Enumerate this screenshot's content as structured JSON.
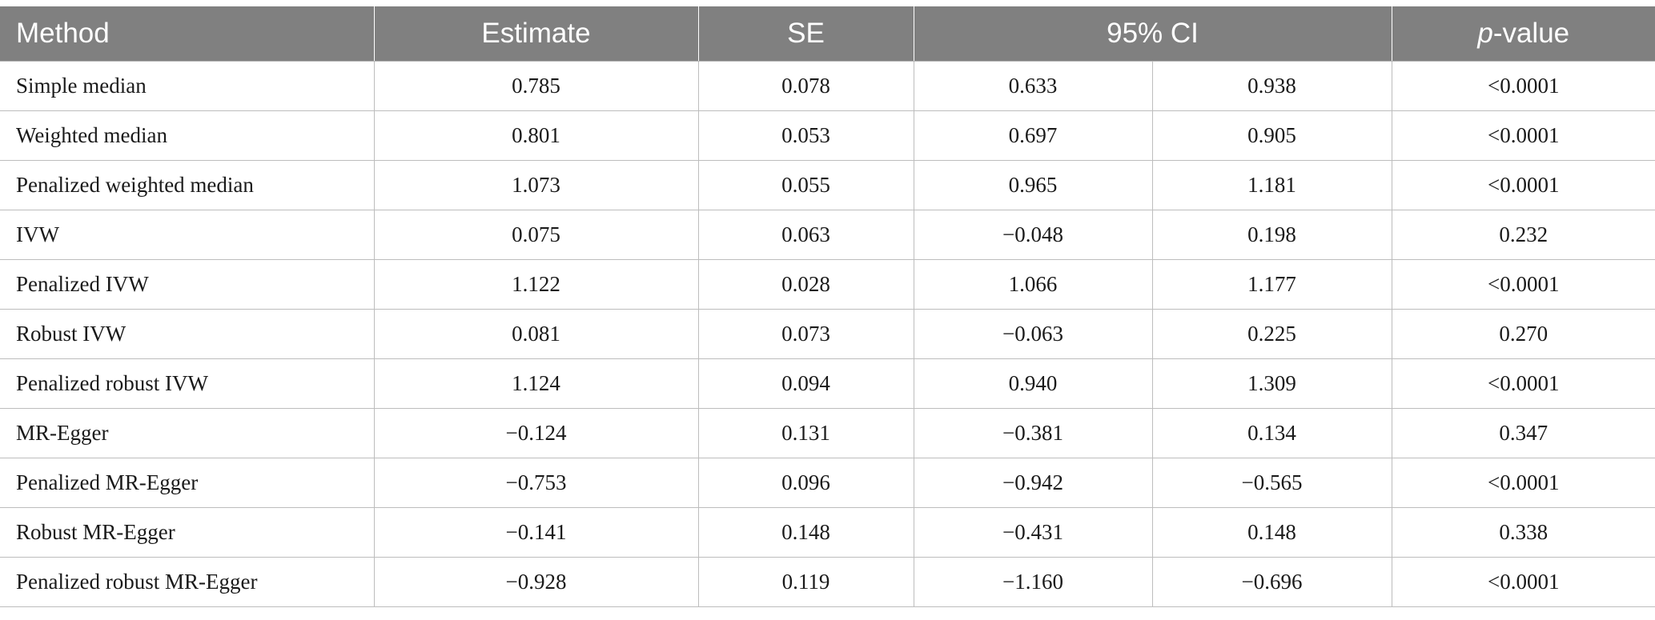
{
  "table": {
    "headers": {
      "method": "Method",
      "estimate": "Estimate",
      "se": "SE",
      "ci": "95% CI",
      "p_prefix": "p",
      "p_suffix": "-value"
    },
    "rows": [
      {
        "method": "Simple median",
        "estimate": "0.785",
        "se": "0.078",
        "ci_low": "0.633",
        "ci_high": "0.938",
        "p": "<0.0001"
      },
      {
        "method": "Weighted median",
        "estimate": "0.801",
        "se": "0.053",
        "ci_low": "0.697",
        "ci_high": "0.905",
        "p": "<0.0001"
      },
      {
        "method": "Penalized weighted median",
        "estimate": "1.073",
        "se": "0.055",
        "ci_low": "0.965",
        "ci_high": "1.181",
        "p": "<0.0001"
      },
      {
        "method": "IVW",
        "estimate": "0.075",
        "se": "0.063",
        "ci_low": "−0.048",
        "ci_high": "0.198",
        "p": "0.232"
      },
      {
        "method": "Penalized IVW",
        "estimate": "1.122",
        "se": "0.028",
        "ci_low": "1.066",
        "ci_high": "1.177",
        "p": "<0.0001"
      },
      {
        "method": "Robust IVW",
        "estimate": "0.081",
        "se": "0.073",
        "ci_low": "−0.063",
        "ci_high": "0.225",
        "p": "0.270"
      },
      {
        "method": "Penalized robust IVW",
        "estimate": "1.124",
        "se": "0.094",
        "ci_low": "0.940",
        "ci_high": "1.309",
        "p": "<0.0001"
      },
      {
        "method": "MR-Egger",
        "estimate": "−0.124",
        "se": "0.131",
        "ci_low": "−0.381",
        "ci_high": "0.134",
        "p": "0.347"
      },
      {
        "method": "Penalized MR-Egger",
        "estimate": "−0.753",
        "se": "0.096",
        "ci_low": "−0.942",
        "ci_high": "−0.565",
        "p": "<0.0001"
      },
      {
        "method": "Robust MR-Egger",
        "estimate": "−0.141",
        "se": "0.148",
        "ci_low": "−0.431",
        "ci_high": "0.148",
        "p": "0.338"
      },
      {
        "method": "Penalized robust MR-Egger",
        "estimate": "−0.928",
        "se": "0.119",
        "ci_low": "−1.160",
        "ci_high": "−0.696",
        "p": "<0.0001"
      }
    ]
  },
  "colors": {
    "header_bg": "#808080",
    "header_text": "#ffffff",
    "grid_line": "#bdbdbd"
  }
}
